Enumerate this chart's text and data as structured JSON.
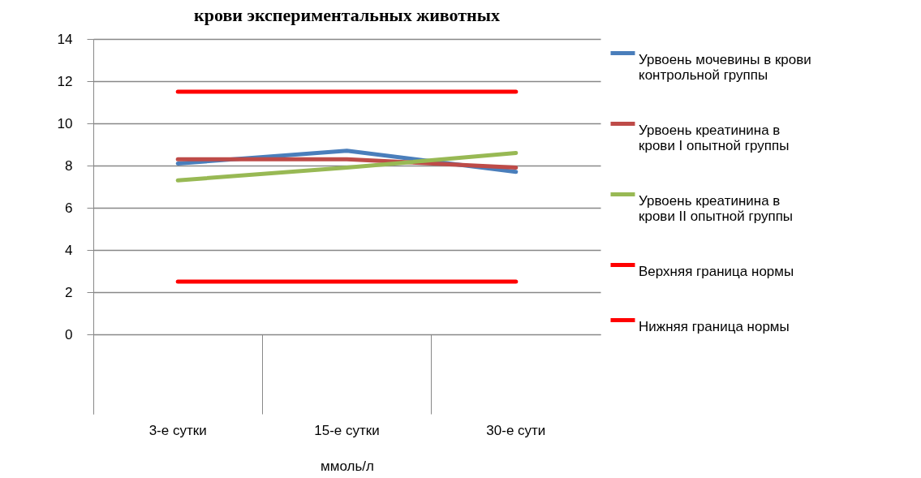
{
  "chart_data": {
    "type": "line",
    "title": "крови экспериментальных животных",
    "xlabel": "ммоль/л",
    "categories": [
      "3-е сутки",
      "15-е сутки",
      "30-е сути"
    ],
    "series": [
      {
        "name": "Урвоень мочевины в крови контрольной группы",
        "color": "#4a7ebb",
        "values": [
          8.1,
          8.7,
          7.7
        ]
      },
      {
        "name": "Урвоень креатинина в крови I опытной группы",
        "color": "#be4b48",
        "values": [
          8.3,
          8.3,
          7.9
        ]
      },
      {
        "name": "Урвоень креатинина в крови II опытной группы",
        "color": "#98b954",
        "values": [
          7.3,
          7.9,
          8.6
        ]
      },
      {
        "name": "Верхняя граница нормы",
        "color": "#ff0000",
        "values": [
          11.5,
          11.5,
          11.5
        ]
      },
      {
        "name": "Нижняя граница нормы",
        "color": "#ff0000",
        "values": [
          2.5,
          2.5,
          2.5
        ]
      }
    ],
    "ylim": [
      0,
      14
    ],
    "yticks": [
      0,
      2,
      4,
      6,
      8,
      10,
      12,
      14
    ],
    "grid": "y",
    "legend": "right",
    "line_style": "solid",
    "marker": "none"
  }
}
